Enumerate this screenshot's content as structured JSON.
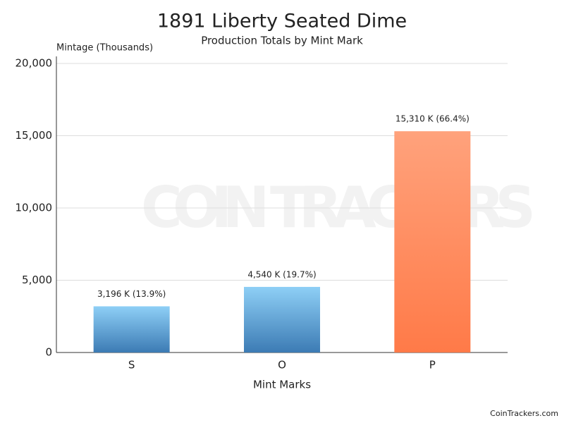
{
  "chart_data": {
    "type": "bar",
    "title": "1891 Liberty Seated Dime",
    "subtitle": "Production Totals by Mint Mark",
    "y_label": "Mintage (Thousands)",
    "x_label": "Mint Marks",
    "watermark": "COIN TRACKERS",
    "credit": "CoinTrackers.com",
    "categories": [
      "S",
      "O",
      "P"
    ],
    "values": [
      3196,
      4540,
      15310
    ],
    "value_labels": [
      "3,196 K (13.9%)",
      "4,540 K (19.7%)",
      "15,310 K (66.4%)"
    ],
    "colors": [
      [
        "#8ecff6",
        "#3c7bb4"
      ],
      [
        "#8ecff6",
        "#3c7bb4"
      ],
      [
        "#ffa27c",
        "#ff7a48"
      ]
    ],
    "ylim": [
      0,
      20000
    ],
    "yticks": [
      0,
      {
        "value": 5000,
        "label": "5,000"
      },
      {
        "value": 10000,
        "label": "10,000"
      },
      {
        "value": 15000,
        "label": "15,000"
      },
      {
        "value": 20000,
        "label": "20,000"
      }
    ],
    "grid": true
  }
}
